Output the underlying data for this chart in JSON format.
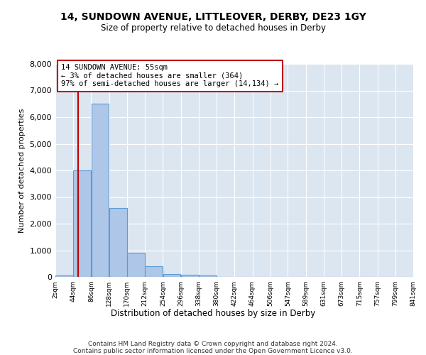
{
  "title": "14, SUNDOWN AVENUE, LITTLEOVER, DERBY, DE23 1GY",
  "subtitle": "Size of property relative to detached houses in Derby",
  "xlabel": "Distribution of detached houses by size in Derby",
  "ylabel": "Number of detached properties",
  "footer_line1": "Contains HM Land Registry data © Crown copyright and database right 2024.",
  "footer_line2": "Contains public sector information licensed under the Open Government Licence v3.0.",
  "annotation_line1": "14 SUNDOWN AVENUE: 55sqm",
  "annotation_line2": "← 3% of detached houses are smaller (364)",
  "annotation_line3": "97% of semi-detached houses are larger (14,134) →",
  "property_size": 55,
  "bar_bins": [
    2,
    44,
    86,
    128,
    170,
    212,
    254,
    296,
    338,
    380,
    422,
    464,
    506,
    547,
    589,
    631,
    673,
    715,
    757,
    799,
    841
  ],
  "bar_heights": [
    50,
    4000,
    6500,
    2600,
    900,
    400,
    120,
    80,
    60,
    0,
    0,
    0,
    0,
    0,
    0,
    0,
    0,
    0,
    0,
    0
  ],
  "bar_color": "#aec6e8",
  "bar_edge_color": "#5b9bd5",
  "vline_color": "#c00000",
  "annotation_box_color": "#c00000",
  "background_color": "#dce6f1",
  "ylim": [
    0,
    8000
  ],
  "yticks": [
    0,
    1000,
    2000,
    3000,
    4000,
    5000,
    6000,
    7000,
    8000
  ]
}
